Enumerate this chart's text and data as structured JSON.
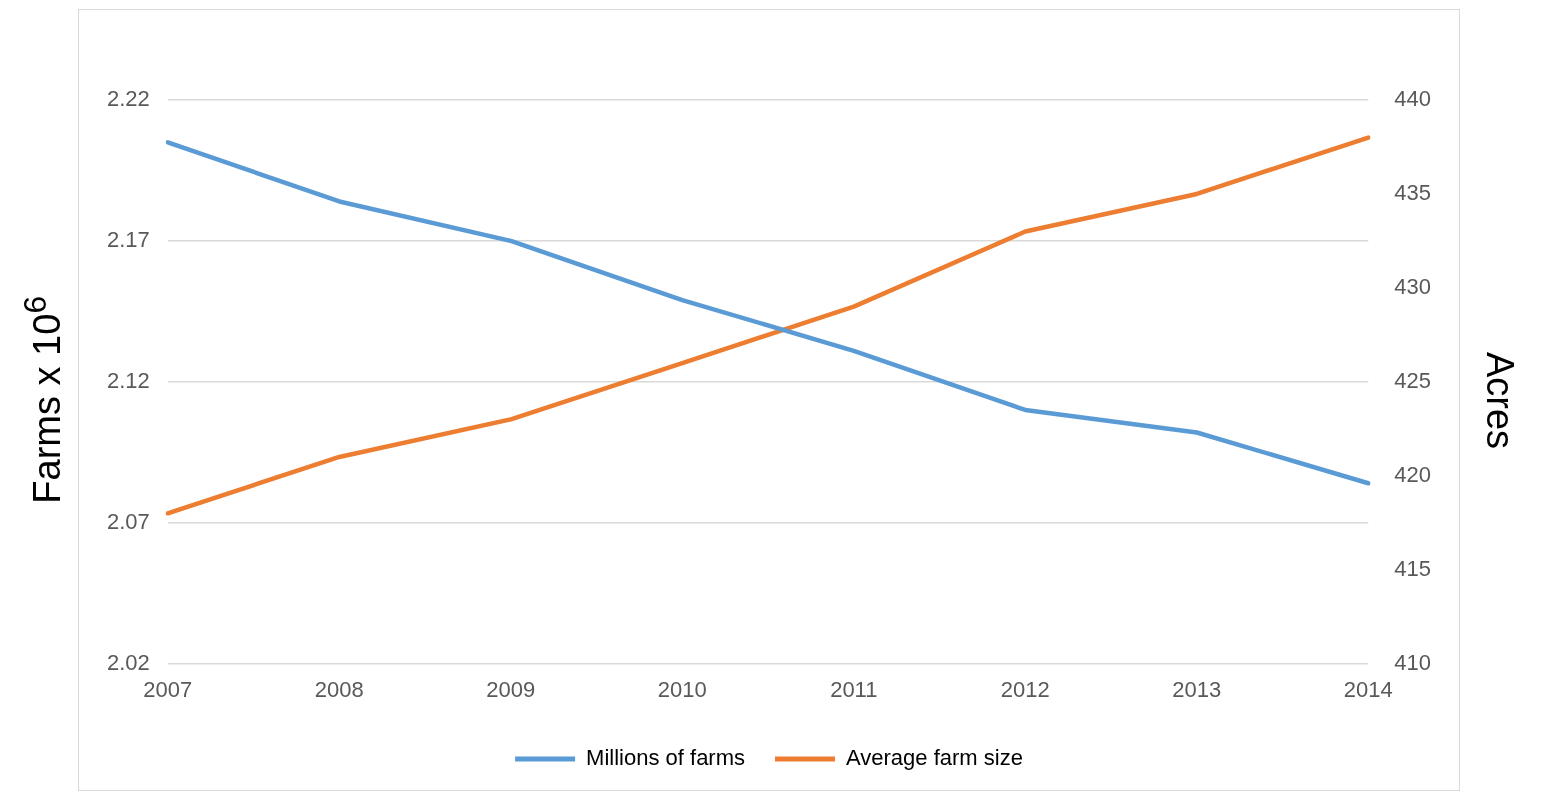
{
  "chart_data": {
    "type": "line",
    "ylabel": "Farms x 10$^{6}$",
    "y2label": "Acres",
    "categories": [
      "2007",
      "2008",
      "2009",
      "2010",
      "2011",
      "2012",
      "2013",
      "2014"
    ],
    "series": [
      {
        "name": "Millions of farms",
        "color": "#5b9bd5",
        "values": [
          2.205,
          2.184,
          2.17,
          2.149,
          2.131,
          2.11,
          2.102,
          2.084
        ]
      },
      {
        "name": "Average farm size",
        "color": "#ed7d31",
        "axis": "y2",
        "values": [
          418,
          421,
          423,
          426,
          429,
          433,
          435,
          438
        ]
      }
    ],
    "ylim": [
      2.02,
      2.22
    ],
    "yticks": [
      {
        "value": 2.02,
        "label": "2.02"
      },
      {
        "value": 2.07,
        "label": "2.07"
      },
      {
        "value": 2.12,
        "label": "2.12"
      },
      {
        "value": 2.17,
        "label": "2.17"
      },
      {
        "value": 2.22,
        "label": "2.22"
      }
    ],
    "y2lim": [
      410,
      440
    ],
    "y2ticks": [
      410,
      415,
      420,
      425,
      430,
      435,
      440
    ],
    "grid": "y",
    "legend": "bottom",
    "marker": "none",
    "line_style": "solid"
  }
}
